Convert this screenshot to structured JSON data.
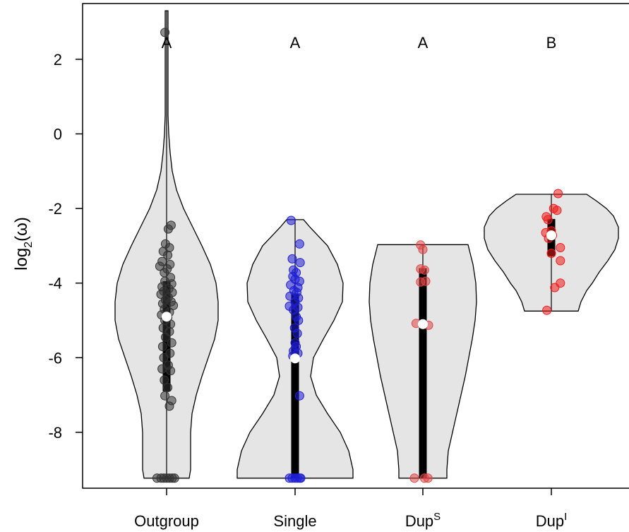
{
  "chart_data": {
    "type": "violin",
    "ylabel": {
      "base": "log",
      "sub": "2",
      "rest": "(ω)"
    },
    "ylim": [
      -9.5,
      3.4
    ],
    "yticks": [
      2,
      0,
      -2,
      -4,
      -6,
      -8
    ],
    "ytick_labels": [
      "2",
      "0",
      "-2",
      "-4",
      "-6",
      "-8"
    ],
    "groups": [
      {
        "label": "Outgroup",
        "sup": "",
        "significance": "A",
        "color": "#333333",
        "violin_range": [
          -9.23,
          3.3
        ],
        "median": -4.9,
        "iqr": [
          -6.9,
          -3.95
        ],
        "whisker": [
          -9.23,
          3.3
        ],
        "points": [
          [
            -0.03,
            2.72
          ],
          [
            0.08,
            -2.45
          ],
          [
            0.03,
            -2.55
          ],
          [
            -0.02,
            -2.95
          ],
          [
            0.05,
            -3.05
          ],
          [
            -0.06,
            -3.15
          ],
          [
            0.02,
            -3.25
          ],
          [
            -0.08,
            -3.42
          ],
          [
            0.06,
            -3.5
          ],
          [
            -0.12,
            -3.55
          ],
          [
            0.01,
            -3.62
          ],
          [
            -0.04,
            -3.72
          ],
          [
            0.07,
            -3.85
          ],
          [
            -0.03,
            -3.95
          ],
          [
            0.09,
            -4.02
          ],
          [
            -0.08,
            -4.1
          ],
          [
            0.04,
            -4.15
          ],
          [
            -0.05,
            -4.22
          ],
          [
            0.1,
            -4.25
          ],
          [
            -0.1,
            -4.3
          ],
          [
            0.03,
            -4.38
          ],
          [
            -0.02,
            -4.45
          ],
          [
            0.08,
            -4.5
          ],
          [
            -0.07,
            -4.55
          ],
          [
            0.12,
            -4.6
          ],
          [
            -0.04,
            -4.7
          ],
          [
            0.05,
            -4.78
          ],
          [
            -0.09,
            -4.85
          ],
          [
            0.02,
            -4.92
          ],
          [
            -0.03,
            -5.0
          ],
          [
            0.07,
            -5.1
          ],
          [
            -0.06,
            -5.2
          ],
          [
            0.05,
            -5.3
          ],
          [
            -0.02,
            -5.45
          ],
          [
            0.09,
            -5.6
          ],
          [
            -0.07,
            -5.7
          ],
          [
            0.06,
            -5.88
          ],
          [
            -0.05,
            -6.0
          ],
          [
            0.03,
            -6.2
          ],
          [
            -0.08,
            -6.3
          ],
          [
            0.07,
            -6.35
          ],
          [
            -0.04,
            -6.6
          ],
          [
            0.02,
            -6.8
          ],
          [
            -0.03,
            -7.02
          ],
          [
            0.09,
            -7.15
          ],
          [
            0.05,
            -7.3
          ],
          [
            -0.17,
            -9.23
          ],
          [
            -0.1,
            -9.23
          ],
          [
            -0.05,
            -9.23
          ],
          [
            0.0,
            -9.23
          ],
          [
            0.05,
            -9.23
          ],
          [
            0.1,
            -9.23
          ],
          [
            0.14,
            -9.23
          ]
        ],
        "violin_profile": [
          [
            -9.23,
            0.32
          ],
          [
            -9.0,
            0.34
          ],
          [
            -8.5,
            0.34
          ],
          [
            -8.0,
            0.34
          ],
          [
            -7.5,
            0.36
          ],
          [
            -7.0,
            0.42
          ],
          [
            -6.5,
            0.5
          ],
          [
            -6.0,
            0.59
          ],
          [
            -5.5,
            0.68
          ],
          [
            -5.0,
            0.73
          ],
          [
            -4.5,
            0.73
          ],
          [
            -4.0,
            0.7
          ],
          [
            -3.5,
            0.62
          ],
          [
            -3.0,
            0.5
          ],
          [
            -2.5,
            0.37
          ],
          [
            -2.0,
            0.24
          ],
          [
            -1.5,
            0.14
          ],
          [
            -1.0,
            0.08
          ],
          [
            -0.5,
            0.05
          ],
          [
            0.0,
            0.03
          ],
          [
            0.5,
            0.02
          ],
          [
            1.0,
            0.02
          ],
          [
            2.0,
            0.02
          ],
          [
            3.0,
            0.02
          ],
          [
            3.3,
            0.02
          ]
        ]
      },
      {
        "label": "Single",
        "sup": "",
        "significance": "A",
        "color": "#1f1fd6",
        "violin_range": [
          -9.23,
          -2.3
        ],
        "median": -6.02,
        "iqr": [
          -9.23,
          -4.28
        ],
        "whisker": [
          -9.23,
          -2.3
        ],
        "points": [
          [
            -0.07,
            -2.32
          ],
          [
            0.08,
            -2.95
          ],
          [
            -0.05,
            -3.35
          ],
          [
            0.09,
            -3.45
          ],
          [
            -0.03,
            -3.65
          ],
          [
            0.02,
            -3.72
          ],
          [
            -0.04,
            -3.82
          ],
          [
            0.0,
            -3.9
          ],
          [
            0.08,
            -3.95
          ],
          [
            -0.08,
            -4.05
          ],
          [
            0.05,
            -4.12
          ],
          [
            -0.02,
            -4.2
          ],
          [
            0.03,
            -4.25
          ],
          [
            -0.09,
            -4.35
          ],
          [
            0.06,
            -4.4
          ],
          [
            0.0,
            -4.5
          ],
          [
            -0.1,
            -4.62
          ],
          [
            0.05,
            -4.65
          ],
          [
            -0.03,
            -4.72
          ],
          [
            0.02,
            -4.9
          ],
          [
            0.06,
            -5.0
          ],
          [
            -0.01,
            -5.2
          ],
          [
            0.04,
            -5.35
          ],
          [
            0.0,
            -5.6
          ],
          [
            0.02,
            -5.7
          ],
          [
            -0.03,
            -5.82
          ],
          [
            0.05,
            -5.88
          ],
          [
            -0.04,
            -5.95
          ],
          [
            0.08,
            -7.02
          ],
          [
            -0.1,
            -9.23
          ],
          [
            -0.05,
            -9.23
          ],
          [
            0.0,
            -9.23
          ],
          [
            0.04,
            -9.23
          ],
          [
            0.08,
            -9.23
          ],
          [
            0.1,
            -9.23
          ]
        ],
        "violin_profile": [
          [
            -9.23,
            0.82
          ],
          [
            -9.0,
            0.82
          ],
          [
            -8.5,
            0.76
          ],
          [
            -8.0,
            0.64
          ],
          [
            -7.5,
            0.46
          ],
          [
            -7.0,
            0.3
          ],
          [
            -6.5,
            0.22
          ],
          [
            -6.0,
            0.26
          ],
          [
            -5.5,
            0.4
          ],
          [
            -5.0,
            0.55
          ],
          [
            -4.5,
            0.67
          ],
          [
            -4.0,
            0.68
          ],
          [
            -3.5,
            0.6
          ],
          [
            -3.0,
            0.46
          ],
          [
            -2.5,
            0.21
          ],
          [
            -2.3,
            0.12
          ]
        ]
      },
      {
        "label": "Dup",
        "sup": "S",
        "significance": "A",
        "color": "#e04545",
        "violin_range": [
          -9.23,
          -2.97
        ],
        "median": -5.1,
        "iqr": [
          -9.23,
          -3.6
        ],
        "whisker": [
          -9.23,
          -2.97
        ],
        "points": [
          [
            -0.04,
            -2.98
          ],
          [
            0.0,
            -3.1
          ],
          [
            -0.04,
            -3.62
          ],
          [
            0.03,
            -3.65
          ],
          [
            0.05,
            -3.95
          ],
          [
            -0.04,
            -3.97
          ],
          [
            -0.12,
            -5.08
          ],
          [
            0.1,
            -5.13
          ],
          [
            -0.15,
            -9.23
          ],
          [
            0.03,
            -9.23
          ],
          [
            0.09,
            -9.23
          ]
        ],
        "violin_profile": [
          [
            -9.23,
            0.34
          ],
          [
            -9.0,
            0.34
          ],
          [
            -8.5,
            0.36
          ],
          [
            -8.0,
            0.42
          ],
          [
            -7.5,
            0.48
          ],
          [
            -7.0,
            0.54
          ],
          [
            -6.5,
            0.6
          ],
          [
            -6.0,
            0.65
          ],
          [
            -5.5,
            0.7
          ],
          [
            -5.0,
            0.74
          ],
          [
            -4.5,
            0.76
          ],
          [
            -4.0,
            0.75
          ],
          [
            -3.5,
            0.71
          ],
          [
            -3.2,
            0.67
          ],
          [
            -2.97,
            0.64
          ]
        ]
      },
      {
        "label": "Dup",
        "sup": "I",
        "significance": "B",
        "color": "#ee1c1c",
        "violin_range": [
          -4.75,
          -1.62
        ],
        "median": -2.72,
        "iqr": [
          -3.28,
          -2.28
        ],
        "whisker": [
          -4.75,
          -1.62
        ],
        "points": [
          [
            0.12,
            -1.6
          ],
          [
            0.04,
            -2.0
          ],
          [
            0.1,
            -2.05
          ],
          [
            -0.09,
            -2.22
          ],
          [
            -0.06,
            -2.3
          ],
          [
            0.0,
            -2.6
          ],
          [
            -0.1,
            -2.65
          ],
          [
            0.02,
            -2.72
          ],
          [
            -0.05,
            -2.8
          ],
          [
            0.0,
            -3.2
          ],
          [
            0.16,
            -3.05
          ],
          [
            0.16,
            -3.4
          ],
          [
            0.16,
            -4.0
          ],
          [
            0.06,
            -4.12
          ],
          [
            -0.08,
            -4.73
          ]
        ],
        "violin_profile": [
          [
            -4.75,
            0.38
          ],
          [
            -4.5,
            0.42
          ],
          [
            -4.2,
            0.5
          ],
          [
            -4.0,
            0.58
          ],
          [
            -3.7,
            0.68
          ],
          [
            -3.4,
            0.8
          ],
          [
            -3.1,
            0.9
          ],
          [
            -2.8,
            0.95
          ],
          [
            -2.5,
            0.95
          ],
          [
            -2.2,
            0.88
          ],
          [
            -2.0,
            0.78
          ],
          [
            -1.8,
            0.64
          ],
          [
            -1.62,
            0.5
          ]
        ]
      }
    ],
    "colors": {
      "violin_fill": "#e5e5e5",
      "violin_stroke": "#000000",
      "median_marker": "#ffffff",
      "box": "#000000"
    }
  }
}
